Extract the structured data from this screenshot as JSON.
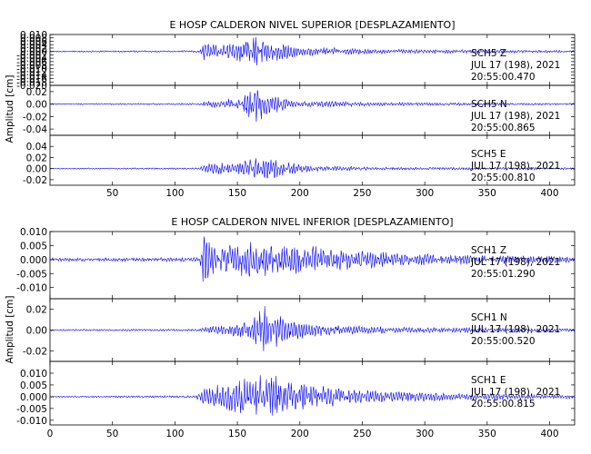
{
  "chart_data": [
    {
      "type": "line",
      "title": "E HOSP CALDERON NIVEL SUPERIOR [DESPLAZAMIENTO]",
      "ylabel": "Amplitud [cm]",
      "xlabel": "",
      "xlim": [
        0,
        420
      ],
      "x_ticks": [
        50,
        100,
        150,
        200,
        250,
        300,
        350,
        400
      ],
      "grid": false,
      "color": "#0000ff",
      "series": [
        {
          "name": "SCH5 Z",
          "component": "SCH5    Z",
          "date": "JUL 17 (198), 2021",
          "time": "20:55:00.470",
          "ylim": [
            -0.02,
            0.01
          ],
          "y_ticks": [
            0.01,
            0.008,
            0.006,
            0.004,
            0.002,
            0.0,
            -0.002,
            -0.004,
            -0.006,
            -0.008,
            -0.01,
            -0.012,
            -0.014,
            -0.016,
            -0.018,
            -0.02
          ],
          "y_tick_labels": [
            "0.010",
            "0.008",
            "0.006",
            "0.004",
            "0.002",
            "0.000",
            "-0.002",
            "-0.004",
            "-0.006",
            "-0.008",
            "-0.010",
            "-0.012",
            "-0.014",
            "-0.016",
            "-0.018",
            "-0.020"
          ],
          "envelope": [
            {
              "t": 0,
              "a": 0.0004
            },
            {
              "t": 120,
              "a": 0.0006
            },
            {
              "t": 123,
              "a": 0.006
            },
            {
              "t": 135,
              "a": 0.004
            },
            {
              "t": 165,
              "a": 0.009
            },
            {
              "t": 180,
              "a": 0.006
            },
            {
              "t": 200,
              "a": 0.003
            },
            {
              "t": 260,
              "a": 0.0015
            },
            {
              "t": 420,
              "a": 0.0007
            }
          ]
        },
        {
          "name": "SCH5 N",
          "component": "SCH5    N",
          "date": "JUL 17 (198), 2021",
          "time": "20:55:00.865",
          "ylim": [
            -0.05,
            0.03
          ],
          "y_ticks": [
            0.02,
            0.0,
            -0.02,
            -0.04
          ],
          "y_tick_labels": [
            "0.02",
            "0.00",
            "-0.02",
            "-0.04"
          ],
          "envelope": [
            {
              "t": 0,
              "a": 0.001
            },
            {
              "t": 120,
              "a": 0.0015
            },
            {
              "t": 125,
              "a": 0.006
            },
            {
              "t": 150,
              "a": 0.01
            },
            {
              "t": 165,
              "a": 0.03
            },
            {
              "t": 180,
              "a": 0.015
            },
            {
              "t": 200,
              "a": 0.006
            },
            {
              "t": 260,
              "a": 0.003
            },
            {
              "t": 420,
              "a": 0.0015
            }
          ]
        },
        {
          "name": "SCH5 E",
          "component": "SCH5    E",
          "date": "JUL 17 (198), 2021",
          "time": "20:55:00.810",
          "ylim": [
            -0.03,
            0.06
          ],
          "y_ticks": [
            0.04,
            0.02,
            0.0,
            -0.02
          ],
          "y_tick_labels": [
            "0.04",
            "0.02",
            "0.00",
            "-0.02"
          ],
          "envelope": [
            {
              "t": 0,
              "a": 0.001
            },
            {
              "t": 120,
              "a": 0.0015
            },
            {
              "t": 125,
              "a": 0.01
            },
            {
              "t": 150,
              "a": 0.012
            },
            {
              "t": 170,
              "a": 0.025
            },
            {
              "t": 190,
              "a": 0.012
            },
            {
              "t": 210,
              "a": 0.005
            },
            {
              "t": 260,
              "a": 0.003
            },
            {
              "t": 420,
              "a": 0.002
            }
          ]
        }
      ]
    },
    {
      "type": "line",
      "title": "E HOSP CALDERON NIVEL INFERIOR [DESPLAZAMIENTO]",
      "ylabel": "Amplitud [cm]",
      "xlabel": "",
      "xlim": [
        0,
        420
      ],
      "x_ticks": [
        0,
        50,
        100,
        150,
        200,
        250,
        300,
        350,
        400
      ],
      "grid": false,
      "color": "#0000ff",
      "series": [
        {
          "name": "SCH1 Z",
          "component": "SCH1    Z",
          "date": "JUL 17 (198), 2021",
          "time": "20:55:01.290",
          "ylim": [
            -0.014,
            0.01
          ],
          "y_ticks": [
            0.01,
            0.005,
            0.0,
            -0.005,
            -0.01
          ],
          "y_tick_labels": [
            "0.010",
            "0.005",
            "0.000",
            "-0.005",
            "-0.010"
          ],
          "envelope": [
            {
              "t": 0,
              "a": 0.0006
            },
            {
              "t": 120,
              "a": 0.0008
            },
            {
              "t": 123,
              "a": 0.01
            },
            {
              "t": 135,
              "a": 0.005
            },
            {
              "t": 160,
              "a": 0.007
            },
            {
              "t": 190,
              "a": 0.006
            },
            {
              "t": 230,
              "a": 0.004
            },
            {
              "t": 300,
              "a": 0.002
            },
            {
              "t": 420,
              "a": 0.0012
            }
          ]
        },
        {
          "name": "SCH1 N",
          "component": "SCH1    N",
          "date": "JUL 17 (198), 2021",
          "time": "20:55:00.520",
          "ylim": [
            -0.03,
            0.03
          ],
          "y_ticks": [
            0.02,
            0.0,
            -0.02
          ],
          "y_tick_labels": [
            "0.02",
            "0.00",
            "-0.02"
          ],
          "envelope": [
            {
              "t": 0,
              "a": 0.0008
            },
            {
              "t": 120,
              "a": 0.001
            },
            {
              "t": 125,
              "a": 0.004
            },
            {
              "t": 160,
              "a": 0.008
            },
            {
              "t": 172,
              "a": 0.024
            },
            {
              "t": 190,
              "a": 0.012
            },
            {
              "t": 220,
              "a": 0.005
            },
            {
              "t": 280,
              "a": 0.003
            },
            {
              "t": 420,
              "a": 0.0015
            }
          ]
        },
        {
          "name": "SCH1 E",
          "component": "SCH1    E",
          "date": "JUL 17 (198), 2021",
          "time": "20:55:00.815",
          "ylim": [
            -0.012,
            0.015
          ],
          "y_ticks": [
            0.01,
            0.005,
            0.0,
            -0.005,
            -0.01
          ],
          "y_tick_labels": [
            "0.010",
            "0.005",
            "0.000",
            "-0.005",
            "-0.010"
          ],
          "envelope": [
            {
              "t": 0,
              "a": 0.0003
            },
            {
              "t": 115,
              "a": 0.0005
            },
            {
              "t": 125,
              "a": 0.004
            },
            {
              "t": 150,
              "a": 0.008
            },
            {
              "t": 180,
              "a": 0.01
            },
            {
              "t": 200,
              "a": 0.006
            },
            {
              "t": 250,
              "a": 0.003
            },
            {
              "t": 330,
              "a": 0.0015
            },
            {
              "t": 420,
              "a": 0.0008
            }
          ]
        }
      ]
    }
  ]
}
